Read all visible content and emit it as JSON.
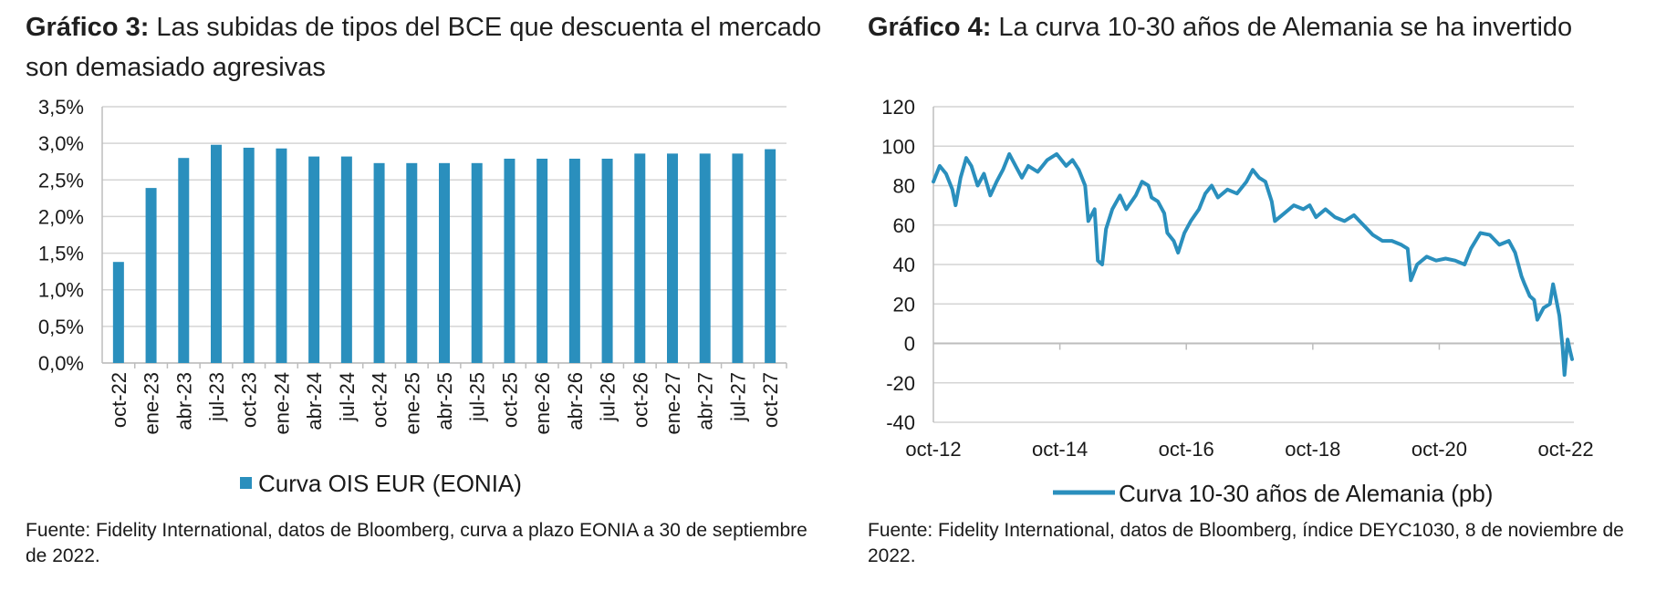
{
  "charts": {
    "left": {
      "title_bold": "Gráfico 3:",
      "title_rest": " Las subidas de tipos del BCE que descuenta el mercado son demasiado agresivas",
      "source": "Fuente: Fidelity International, datos de Bloomberg, curva a plazo EONIA a 30 de septiembre de 2022."
    },
    "right": {
      "title_bold": "Gráfico 4:",
      "title_rest": " La curva 10-30 años de Alemania se ha invertido",
      "source": "Fuente: Fidelity International, datos de Bloomberg, índice DEYC1030, 8 de noviembre de 2022."
    }
  },
  "chart_data": [
    {
      "type": "bar",
      "title": "Las subidas de tipos del BCE que descuenta el mercado son demasiado agresivas",
      "categories": [
        "oct-22",
        "ene-23",
        "abr-23",
        "jul-23",
        "oct-23",
        "ene-24",
        "abr-24",
        "jul-24",
        "oct-24",
        "ene-25",
        "abr-25",
        "jul-25",
        "oct-25",
        "ene-26",
        "abr-26",
        "jul-26",
        "oct-26",
        "ene-27",
        "abr-27",
        "jul-27",
        "oct-27"
      ],
      "series": [
        {
          "name": "Curva OIS EUR (EONIA)",
          "values": [
            1.38,
            2.39,
            2.8,
            2.98,
            2.94,
            2.93,
            2.82,
            2.82,
            2.73,
            2.73,
            2.73,
            2.73,
            2.79,
            2.79,
            2.79,
            2.79,
            2.86,
            2.86,
            2.86,
            2.86,
            2.92
          ]
        }
      ],
      "yticks": [
        "0,0%",
        "0,5%",
        "1,0%",
        "1,5%",
        "2,0%",
        "2,5%",
        "3,0%",
        "3,5%"
      ],
      "ylim": [
        0,
        3.5
      ],
      "legend": "bottom",
      "color": "#2a8fbd"
    },
    {
      "type": "line",
      "title": "La curva 10-30 años de Alemania se ha invertido",
      "x_tick_labels": [
        "oct-12",
        "oct-14",
        "oct-16",
        "oct-18",
        "oct-20",
        "oct-22"
      ],
      "x_range": [
        2012.75,
        2022.85
      ],
      "yticks": [
        -40,
        -20,
        0,
        20,
        40,
        60,
        80,
        100,
        120
      ],
      "ylim": [
        -40,
        120
      ],
      "legend": "bottom",
      "color": "#2a8fbd",
      "series": [
        {
          "name": "Curva 10-30 años de Alemania (pb)",
          "points": [
            [
              2012.75,
              82
            ],
            [
              2012.85,
              90
            ],
            [
              2012.95,
              86
            ],
            [
              2013.05,
              78
            ],
            [
              2013.1,
              70
            ],
            [
              2013.18,
              84
            ],
            [
              2013.27,
              94
            ],
            [
              2013.35,
              90
            ],
            [
              2013.45,
              80
            ],
            [
              2013.55,
              86
            ],
            [
              2013.65,
              75
            ],
            [
              2013.75,
              82
            ],
            [
              2013.85,
              88
            ],
            [
              2013.95,
              96
            ],
            [
              2014.05,
              90
            ],
            [
              2014.15,
              84
            ],
            [
              2014.25,
              90
            ],
            [
              2014.4,
              87
            ],
            [
              2014.55,
              93
            ],
            [
              2014.7,
              96
            ],
            [
              2014.85,
              90
            ],
            [
              2014.95,
              93
            ],
            [
              2015.05,
              88
            ],
            [
              2015.15,
              80
            ],
            [
              2015.2,
              62
            ],
            [
              2015.3,
              68
            ],
            [
              2015.35,
              42
            ],
            [
              2015.42,
              40
            ],
            [
              2015.48,
              58
            ],
            [
              2015.58,
              68
            ],
            [
              2015.7,
              75
            ],
            [
              2015.8,
              68
            ],
            [
              2015.95,
              75
            ],
            [
              2016.05,
              82
            ],
            [
              2016.15,
              80
            ],
            [
              2016.2,
              74
            ],
            [
              2016.3,
              72
            ],
            [
              2016.4,
              66
            ],
            [
              2016.45,
              56
            ],
            [
              2016.55,
              52
            ],
            [
              2016.62,
              46
            ],
            [
              2016.72,
              56
            ],
            [
              2016.82,
              62
            ],
            [
              2016.95,
              68
            ],
            [
              2017.05,
              76
            ],
            [
              2017.15,
              80
            ],
            [
              2017.25,
              74
            ],
            [
              2017.4,
              78
            ],
            [
              2017.55,
              76
            ],
            [
              2017.7,
              82
            ],
            [
              2017.8,
              88
            ],
            [
              2017.9,
              84
            ],
            [
              2018.0,
              82
            ],
            [
              2018.1,
              72
            ],
            [
              2018.15,
              62
            ],
            [
              2018.3,
              66
            ],
            [
              2018.45,
              70
            ],
            [
              2018.6,
              68
            ],
            [
              2018.7,
              70
            ],
            [
              2018.8,
              64
            ],
            [
              2018.95,
              68
            ],
            [
              2019.1,
              64
            ],
            [
              2019.25,
              62
            ],
            [
              2019.4,
              65
            ],
            [
              2019.55,
              60
            ],
            [
              2019.7,
              55
            ],
            [
              2019.85,
              52
            ],
            [
              2020.0,
              52
            ],
            [
              2020.15,
              50
            ],
            [
              2020.25,
              48
            ],
            [
              2020.3,
              32
            ],
            [
              2020.4,
              40
            ],
            [
              2020.55,
              44
            ],
            [
              2020.7,
              42
            ],
            [
              2020.85,
              43
            ],
            [
              2021.0,
              42
            ],
            [
              2021.15,
              40
            ],
            [
              2021.25,
              48
            ],
            [
              2021.4,
              56
            ],
            [
              2021.55,
              55
            ],
            [
              2021.7,
              50
            ],
            [
              2021.85,
              52
            ],
            [
              2021.95,
              46
            ],
            [
              2022.05,
              34
            ],
            [
              2022.1,
              30
            ],
            [
              2022.18,
              24
            ],
            [
              2022.25,
              22
            ],
            [
              2022.3,
              12
            ],
            [
              2022.4,
              18
            ],
            [
              2022.5,
              20
            ],
            [
              2022.55,
              30
            ],
            [
              2022.6,
              22
            ],
            [
              2022.65,
              14
            ],
            [
              2022.7,
              -2
            ],
            [
              2022.73,
              -16
            ],
            [
              2022.78,
              2
            ],
            [
              2022.82,
              -4
            ],
            [
              2022.85,
              -8
            ]
          ]
        }
      ]
    }
  ]
}
